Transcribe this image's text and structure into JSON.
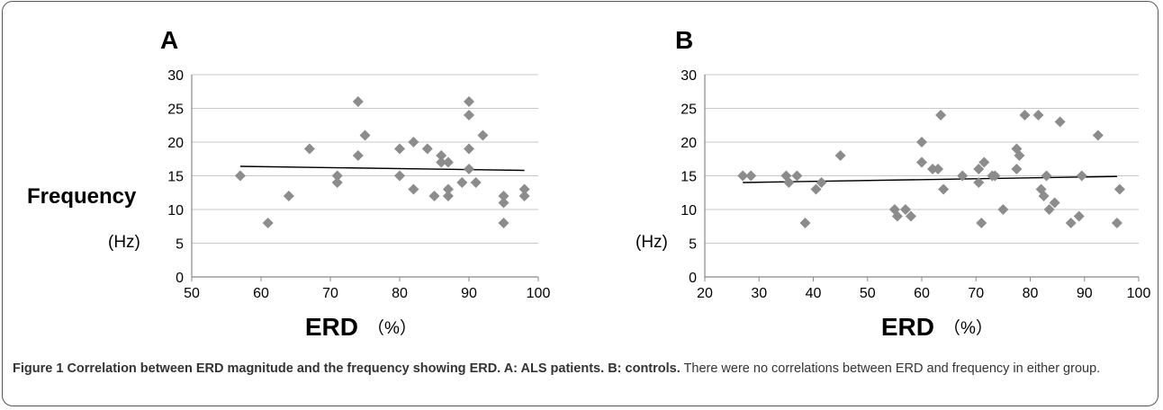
{
  "colors": {
    "marker": "#8c8c8c",
    "grid": "#c8c8c8",
    "axis": "#888888",
    "trend": "#000000",
    "caption_text": "#333333"
  },
  "caption": {
    "figure_label": "Figure 1",
    "bold_text": "Correlation between ERD magnitude and the frequency showing ERD. A: ALS patients",
    "separator": ". ",
    "bold_text_2": "B: controls.",
    "body_text": " There were no correlations between ERD and frequency in either group."
  },
  "chart_data": [
    {
      "type": "scatter",
      "panel_label": "A",
      "ylabel": "Frequency",
      "yunit": "(Hz)",
      "xlabel": "ERD",
      "xunit": "（%）",
      "xlim": [
        50,
        100
      ],
      "ylim": [
        0,
        30
      ],
      "xticks": [
        50,
        60,
        70,
        80,
        90,
        100
      ],
      "yticks": [
        0,
        5,
        10,
        15,
        20,
        25,
        30
      ],
      "grid": true,
      "trendline": {
        "x": [
          57,
          98
        ],
        "y": [
          16.4,
          15.8
        ]
      },
      "points": [
        [
          57,
          15
        ],
        [
          61,
          8
        ],
        [
          64,
          12
        ],
        [
          67,
          19
        ],
        [
          71,
          15
        ],
        [
          71,
          14
        ],
        [
          74,
          26
        ],
        [
          74,
          18
        ],
        [
          75,
          21
        ],
        [
          80,
          19
        ],
        [
          80,
          15
        ],
        [
          82,
          20
        ],
        [
          82,
          13
        ],
        [
          84,
          19
        ],
        [
          85,
          12
        ],
        [
          86,
          18
        ],
        [
          86,
          17
        ],
        [
          87,
          17
        ],
        [
          87,
          13
        ],
        [
          87,
          12
        ],
        [
          89,
          14
        ],
        [
          90,
          26
        ],
        [
          90,
          24
        ],
        [
          90,
          19
        ],
        [
          90,
          16
        ],
        [
          91,
          14
        ],
        [
          92,
          21
        ],
        [
          95,
          12
        ],
        [
          95,
          11
        ],
        [
          95,
          8
        ],
        [
          98,
          13
        ],
        [
          98,
          12
        ]
      ]
    },
    {
      "type": "scatter",
      "panel_label": "B",
      "ylabel": "",
      "yunit": "(Hz)",
      "xlabel": "ERD",
      "xunit": "（%）",
      "xlim": [
        20,
        100
      ],
      "ylim": [
        0,
        30
      ],
      "xticks": [
        20,
        30,
        40,
        50,
        60,
        70,
        80,
        90,
        100
      ],
      "yticks": [
        0,
        5,
        10,
        15,
        20,
        25,
        30
      ],
      "grid": true,
      "trendline": {
        "x": [
          27,
          96
        ],
        "y": [
          14.0,
          14.9
        ]
      },
      "points": [
        [
          27,
          15
        ],
        [
          28.5,
          15
        ],
        [
          35,
          15
        ],
        [
          35.5,
          14
        ],
        [
          37,
          15
        ],
        [
          38.5,
          8
        ],
        [
          40.5,
          13
        ],
        [
          41.5,
          14
        ],
        [
          45,
          18
        ],
        [
          55,
          10
        ],
        [
          55.5,
          9
        ],
        [
          57,
          10
        ],
        [
          58,
          9
        ],
        [
          60,
          20
        ],
        [
          60,
          17
        ],
        [
          62,
          16
        ],
        [
          63,
          16
        ],
        [
          63.5,
          24
        ],
        [
          64,
          13
        ],
        [
          67.5,
          15
        ],
        [
          70.5,
          16
        ],
        [
          70.5,
          14
        ],
        [
          71,
          8
        ],
        [
          71.5,
          17
        ],
        [
          73,
          15
        ],
        [
          73.5,
          15
        ],
        [
          75,
          10
        ],
        [
          77.5,
          19
        ],
        [
          77.5,
          16
        ],
        [
          78,
          18
        ],
        [
          79,
          24
        ],
        [
          81.5,
          24
        ],
        [
          82,
          13
        ],
        [
          82.5,
          12
        ],
        [
          83,
          15
        ],
        [
          83.5,
          10
        ],
        [
          84.5,
          11
        ],
        [
          85.5,
          23
        ],
        [
          87.5,
          8
        ],
        [
          89,
          9
        ],
        [
          89.5,
          15
        ],
        [
          92.5,
          21
        ],
        [
          96,
          8
        ],
        [
          96.5,
          13
        ]
      ]
    }
  ]
}
